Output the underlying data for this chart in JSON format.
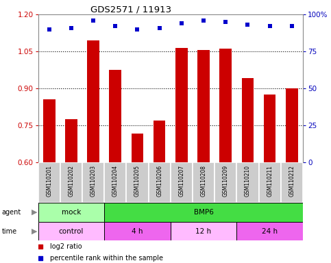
{
  "title": "GDS2571 / 11913",
  "samples": [
    "GSM110201",
    "GSM110202",
    "GSM110203",
    "GSM110204",
    "GSM110205",
    "GSM110206",
    "GSM110207",
    "GSM110208",
    "GSM110209",
    "GSM110210",
    "GSM110211",
    "GSM110212"
  ],
  "log2_ratio": [
    0.855,
    0.775,
    1.095,
    0.975,
    0.715,
    0.77,
    1.065,
    1.055,
    1.06,
    0.94,
    0.875,
    0.9
  ],
  "percentile": [
    90,
    91,
    96,
    92,
    90,
    91,
    94,
    96,
    95,
    93,
    92,
    92
  ],
  "bar_color": "#cc0000",
  "dot_color": "#0000cc",
  "ylim_left": [
    0.6,
    1.2
  ],
  "ylim_right": [
    0,
    100
  ],
  "yticks_left": [
    0.6,
    0.75,
    0.9,
    1.05,
    1.2
  ],
  "yticks_right": [
    0,
    25,
    50,
    75,
    100
  ],
  "right_tick_labels": [
    "0",
    "25",
    "50",
    "75",
    "100%"
  ],
  "agent_groups": [
    {
      "label": "mock",
      "start": 0,
      "end": 3,
      "color": "#aaffaa"
    },
    {
      "label": "BMP6",
      "start": 3,
      "end": 12,
      "color": "#44dd44"
    }
  ],
  "time_groups": [
    {
      "label": "control",
      "start": 0,
      "end": 3,
      "color": "#ffbbff"
    },
    {
      "label": "4 h",
      "start": 3,
      "end": 6,
      "color": "#ee66ee"
    },
    {
      "label": "12 h",
      "start": 6,
      "end": 9,
      "color": "#ffbbff"
    },
    {
      "label": "24 h",
      "start": 9,
      "end": 12,
      "color": "#ee66ee"
    }
  ],
  "legend_red_label": "log2 ratio",
  "legend_blue_label": "percentile rank within the sample",
  "tick_label_color": "#cc0000",
  "right_tick_color": "#0000bb",
  "bar_bottom": 0.6,
  "chart_bg": "#ffffff",
  "label_row_bg": "#cccccc"
}
